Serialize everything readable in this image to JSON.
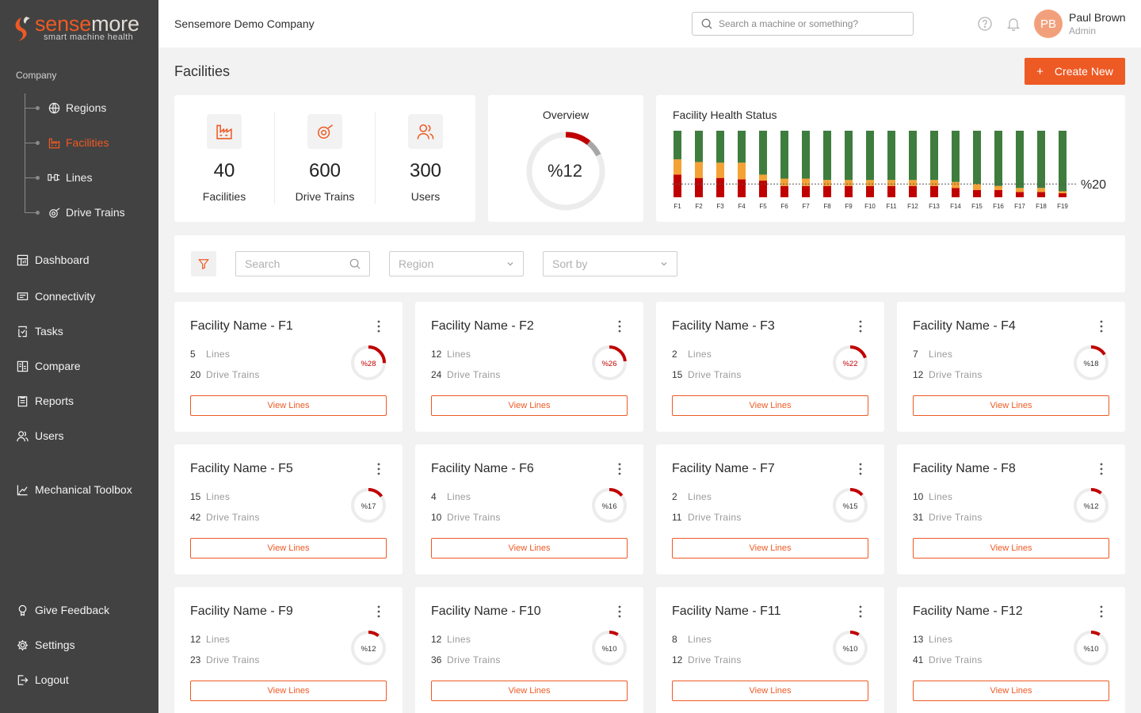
{
  "brand": {
    "logo_text_a": "sense",
    "logo_text_b": "more",
    "tagline": "smart machine health"
  },
  "sidebar": {
    "section_label": "Company",
    "sub_items": [
      {
        "label": "Regions",
        "icon": "globe-icon"
      },
      {
        "label": "Facilities",
        "icon": "factory-icon",
        "active": true
      },
      {
        "label": "Lines",
        "icon": "lines-icon"
      },
      {
        "label": "Drive Trains",
        "icon": "drive-train-icon"
      }
    ],
    "nav_items": [
      {
        "label": "Dashboard",
        "icon": "dashboard-icon"
      },
      {
        "label": "Connectivity",
        "icon": "connectivity-icon"
      },
      {
        "label": "Tasks",
        "icon": "tasks-icon"
      },
      {
        "label": "Compare",
        "icon": "compare-icon"
      },
      {
        "label": "Reports",
        "icon": "reports-icon"
      },
      {
        "label": "Users",
        "icon": "users-icon"
      },
      {
        "label": "Mechanical Toolbox",
        "icon": "toolbox-icon"
      }
    ],
    "bottom_items": [
      {
        "label": "Give Feedback",
        "icon": "feedback-icon"
      },
      {
        "label": "Settings",
        "icon": "gear-icon"
      },
      {
        "label": "Logout",
        "icon": "logout-icon"
      }
    ]
  },
  "header": {
    "company": "Sensemore Demo Company",
    "search_placeholder": "Search a machine or something?",
    "user": {
      "initials": "PB",
      "name": "Paul Brown",
      "role": "Admin"
    }
  },
  "page": {
    "title": "Facilities",
    "create_label": "Create New"
  },
  "stats": [
    {
      "value": "40",
      "label": "Facilities",
      "icon": "factory-icon"
    },
    {
      "value": "600",
      "label": "Drive Trains",
      "icon": "drive-train-icon"
    },
    {
      "value": "300",
      "label": "Users",
      "icon": "users-icon"
    }
  ],
  "overview": {
    "title": "Overview",
    "value_text": "%12",
    "percent": 12
  },
  "filters": {
    "search_placeholder": "Search",
    "region_placeholder": "Region",
    "sort_placeholder": "Sort by"
  },
  "chart_data": {
    "type": "bar",
    "stacked": true,
    "title": "Facility Health Status",
    "categories": [
      "F1",
      "F2",
      "F3",
      "F4",
      "F5",
      "F6",
      "F7",
      "F8",
      "F9",
      "F10",
      "F11",
      "F12",
      "F13",
      "F14",
      "F15",
      "F16",
      "F17",
      "F18",
      "F19"
    ],
    "series": [
      {
        "color": "#c00000",
        "values": [
          34,
          29,
          29,
          27,
          25,
          17,
          17,
          17,
          17,
          17,
          17,
          17,
          17,
          14,
          11,
          11,
          8,
          8,
          6
        ]
      },
      {
        "color": "#f4a235",
        "values": [
          23,
          24,
          23,
          25,
          9,
          11,
          11,
          9,
          9,
          9,
          9,
          9,
          9,
          9,
          9,
          6,
          6,
          6,
          3
        ]
      },
      {
        "color": "#3f7d3e",
        "values": [
          43,
          47,
          48,
          48,
          66,
          72,
          72,
          74,
          74,
          74,
          74,
          74,
          74,
          77,
          80,
          83,
          86,
          86,
          91
        ]
      }
    ],
    "threshold": 20,
    "threshold_label": "%20",
    "ylim": [
      0,
      100
    ]
  },
  "facility_list": {
    "view_label": "View Lines",
    "lines_unit": "Lines",
    "drive_unit": "Drive Trains",
    "cards": [
      {
        "name": "Facility Name - F1",
        "lines": "5",
        "drive_trains": "20",
        "health_text": "%28",
        "health": 28
      },
      {
        "name": "Facility Name - F2",
        "lines": "12",
        "drive_trains": "24",
        "health_text": "%26",
        "health": 26
      },
      {
        "name": "Facility Name - F3",
        "lines": "2",
        "drive_trains": "15",
        "health_text": "%22",
        "health": 22
      },
      {
        "name": "Facility Name - F4",
        "lines": "7",
        "drive_trains": "12",
        "health_text": "%18",
        "health": 18
      },
      {
        "name": "Facility Name - F5",
        "lines": "15",
        "drive_trains": "42",
        "health_text": "%17",
        "health": 17
      },
      {
        "name": "Facility Name - F6",
        "lines": "4",
        "drive_trains": "10",
        "health_text": "%16",
        "health": 16
      },
      {
        "name": "Facility Name - F7",
        "lines": "2",
        "drive_trains": "11",
        "health_text": "%15",
        "health": 15
      },
      {
        "name": "Facility Name - F8",
        "lines": "10",
        "drive_trains": "31",
        "health_text": "%12",
        "health": 12
      },
      {
        "name": "Facility Name - F9",
        "lines": "12",
        "drive_trains": "23",
        "health_text": "%12",
        "health": 12
      },
      {
        "name": "Facility Name - F10",
        "lines": "12",
        "drive_trains": "36",
        "health_text": "%10",
        "health": 10
      },
      {
        "name": "Facility Name - F11",
        "lines": "8",
        "drive_trains": "12",
        "health_text": "%10",
        "health": 10
      },
      {
        "name": "Facility Name - F12",
        "lines": "13",
        "drive_trains": "41",
        "health_text": "%10",
        "health": 10
      }
    ]
  },
  "colors": {
    "accent": "#ee5a24",
    "sidebar": "#424242",
    "critical": "#c00000",
    "warning": "#f4a235",
    "healthy": "#3f7d3e"
  }
}
